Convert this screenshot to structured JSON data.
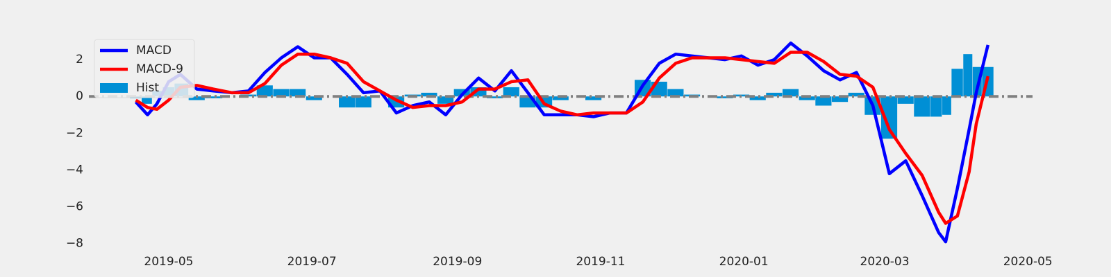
{
  "chart_data": {
    "type": "line",
    "x": [
      "2019-04-17",
      "2019-04-22",
      "2019-04-26",
      "2019-05-01",
      "2019-05-06",
      "2019-05-13",
      "2019-05-20",
      "2019-05-28",
      "2019-06-04",
      "2019-06-11",
      "2019-06-18",
      "2019-06-25",
      "2019-07-02",
      "2019-07-09",
      "2019-07-16",
      "2019-07-23",
      "2019-07-30",
      "2019-08-06",
      "2019-08-13",
      "2019-08-20",
      "2019-08-27",
      "2019-09-03",
      "2019-09-10",
      "2019-09-17",
      "2019-09-24",
      "2019-10-01",
      "2019-10-08",
      "2019-10-15",
      "2019-10-22",
      "2019-10-29",
      "2019-11-05",
      "2019-11-12",
      "2019-11-19",
      "2019-11-26",
      "2019-12-03",
      "2019-12-10",
      "2019-12-17",
      "2019-12-24",
      "2019-12-31",
      "2020-01-07",
      "2020-01-14",
      "2020-01-21",
      "2020-01-28",
      "2020-02-04",
      "2020-02-11",
      "2020-02-18",
      "2020-02-25",
      "2020-03-03",
      "2020-03-10",
      "2020-03-17",
      "2020-03-24",
      "2020-03-27",
      "2020-04-01",
      "2020-04-06",
      "2020-04-09",
      "2020-04-14"
    ],
    "series": [
      {
        "name": "MACD",
        "kind": "line",
        "color": "#0000ff",
        "values": [
          -0.3,
          -1.0,
          -0.4,
          0.8,
          1.2,
          0.4,
          0.3,
          0.2,
          0.3,
          1.3,
          2.1,
          2.7,
          2.1,
          2.1,
          1.2,
          0.2,
          0.3,
          -0.9,
          -0.5,
          -0.3,
          -1.0,
          0.1,
          1.0,
          0.3,
          1.4,
          0.2,
          -1.0,
          -1.0,
          -1.0,
          -1.1,
          -0.9,
          -0.9,
          0.6,
          1.8,
          2.3,
          2.2,
          2.1,
          2.0,
          2.2,
          1.7,
          2.0,
          2.9,
          2.2,
          1.4,
          0.9,
          1.3,
          -0.5,
          -4.2,
          -3.5,
          -5.4,
          -7.4,
          -7.9,
          -5.0,
          -1.8,
          0.2,
          2.8
        ]
      },
      {
        "name": "MACD-9",
        "kind": "line",
        "color": "#ff0000",
        "values": [
          -0.2,
          -0.6,
          -0.7,
          -0.2,
          0.5,
          0.6,
          0.4,
          0.2,
          0.2,
          0.7,
          1.7,
          2.3,
          2.3,
          2.1,
          1.8,
          0.8,
          0.3,
          -0.2,
          -0.6,
          -0.5,
          -0.5,
          -0.3,
          0.4,
          0.4,
          0.8,
          0.9,
          -0.4,
          -0.8,
          -1.0,
          -0.9,
          -0.9,
          -0.9,
          -0.3,
          1.0,
          1.8,
          2.1,
          2.1,
          2.1,
          2.0,
          1.9,
          1.8,
          2.4,
          2.4,
          1.9,
          1.2,
          1.1,
          0.5,
          -1.8,
          -3.1,
          -4.3,
          -6.3,
          -6.9,
          -6.5,
          -4.1,
          -1.5,
          1.1
        ]
      },
      {
        "name": "Hist",
        "kind": "bar",
        "color": "#008fd5",
        "values": [
          -0.1,
          -0.4,
          0.3,
          0.5,
          0.7,
          -0.2,
          -0.1,
          0.0,
          0.1,
          0.6,
          0.4,
          0.4,
          -0.2,
          0.0,
          -0.6,
          -0.6,
          0.0,
          -0.6,
          0.1,
          0.2,
          -0.4,
          0.4,
          0.5,
          -0.1,
          0.5,
          -0.6,
          -0.6,
          -0.2,
          0.0,
          -0.2,
          0.0,
          0.0,
          0.9,
          0.8,
          0.4,
          0.1,
          0.0,
          -0.1,
          0.1,
          -0.2,
          0.2,
          0.4,
          -0.2,
          -0.5,
          -0.3,
          0.2,
          -1.0,
          -2.3,
          -0.4,
          -1.1,
          -1.1,
          -1.0,
          1.5,
          2.3,
          1.6,
          1.6
        ]
      }
    ],
    "xlim": [
      "2019-03-28",
      "2020-05-03"
    ],
    "xticks": [
      {
        "value": "2019-05-01",
        "label": "2019-05"
      },
      {
        "value": "2019-07-01",
        "label": "2019-07"
      },
      {
        "value": "2019-09-01",
        "label": "2019-09"
      },
      {
        "value": "2019-11-01",
        "label": "2019-11"
      },
      {
        "value": "2020-01-01",
        "label": "2020-01"
      },
      {
        "value": "2020-03-01",
        "label": "2020-03"
      },
      {
        "value": "2020-05-01",
        "label": "2020-05"
      }
    ],
    "ylim": [
      -8.5,
      4.0
    ],
    "yticks": [
      {
        "value": -8,
        "label": "−8"
      },
      {
        "value": -6,
        "label": "−6"
      },
      {
        "value": -4,
        "label": "−4"
      },
      {
        "value": -2,
        "label": "−2"
      },
      0,
      2
    ],
    "hline": 0,
    "legend": "upper left",
    "grid": false
  }
}
